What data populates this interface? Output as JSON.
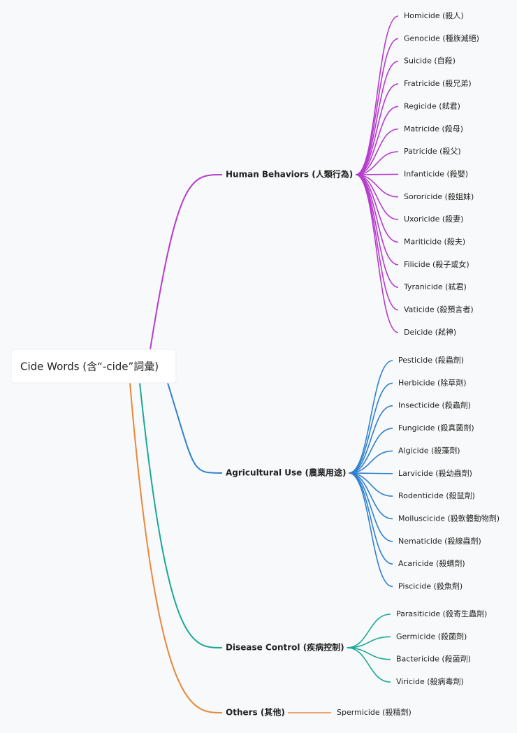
{
  "root": {
    "label": "Cide Words (含“-cide”詞彙)"
  },
  "branches": [
    {
      "label": "Human Behaviors (人類行為)",
      "color": "#b53ccc",
      "children": [
        "Homicide (殺人)",
        "Genocide (種族滅絕)",
        "Suicide (自殺)",
        "Fratricide (殺兄弟)",
        "Regicide (弒君)",
        "Matricide (殺母)",
        "Patricide (殺父)",
        "Infanticide (殺嬰)",
        "Sororicide (殺姐妹)",
        "Uxoricide (殺妻)",
        "Mariticide (殺夫)",
        "Filicide (殺子或女)",
        "Tyranicide (弒君)",
        "Vaticide (殺預言者)",
        "Deicide (弒神)"
      ]
    },
    {
      "label": "Agricultural Use (農業用途)",
      "color": "#2f80cf",
      "children": [
        "Pesticide (殺蟲劑)",
        "Herbicide (除草劑)",
        "Insecticide (殺蟲劑)",
        "Fungicide (殺真菌劑)",
        "Algicide (殺藻劑)",
        "Larvicide (殺幼蟲劑)",
        "Rodenticide (殺鼠劑)",
        "Molluscicide (殺軟體動物劑)",
        "Nematicide (殺線蟲劑)",
        "Acaricide (殺螨劑)",
        "Piscicide (殺魚劑)"
      ]
    },
    {
      "label": "Disease Control (疾病控制)",
      "color": "#1aa896",
      "children": [
        "Parasiticide (殺寄生蟲劑)",
        "Germicide (殺菌劑)",
        "Bactericide (殺菌劑)",
        "Viricide (殺病毒劑)"
      ]
    },
    {
      "label": "Others (其他)",
      "color": "#e8883a",
      "children": [
        "Spermicide (殺精劑)"
      ]
    }
  ]
}
